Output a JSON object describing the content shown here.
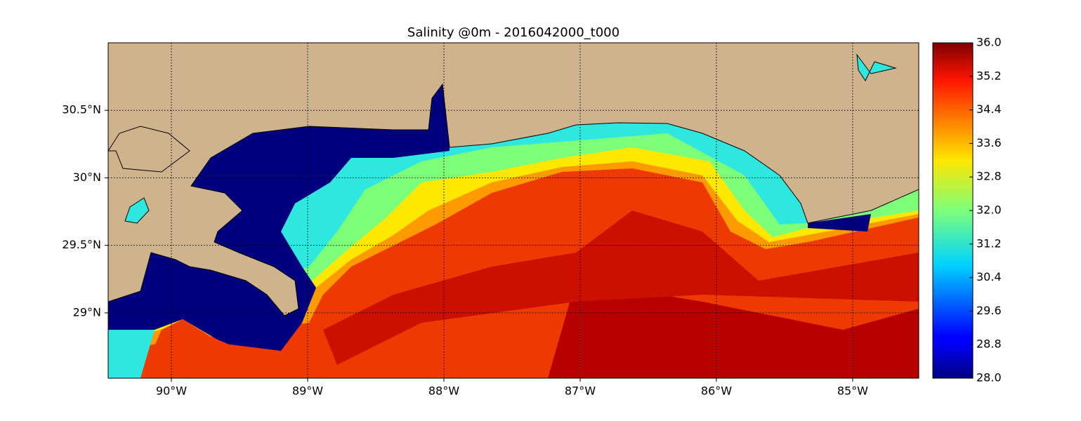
{
  "map": {
    "title": "Salinity @0m - 2016042000_t000",
    "xlim": [
      -90.464,
      -84.515
    ],
    "xticks": [
      {
        "value": -90,
        "label": "90°W"
      },
      {
        "value": -89,
        "label": "89°W"
      },
      {
        "value": -88,
        "label": "88°W"
      },
      {
        "value": -87,
        "label": "87°W"
      },
      {
        "value": -86,
        "label": "86°W"
      },
      {
        "value": -85,
        "label": "85°W"
      }
    ],
    "ylim": [
      28.516,
      31.0
    ],
    "yticks": [
      {
        "value": 29,
        "label": "29°N"
      },
      {
        "value": 29.5,
        "label": "29.5°N"
      },
      {
        "value": 30,
        "label": "30°N"
      },
      {
        "value": 30.5,
        "label": "30.5°N"
      }
    ],
    "grid": true,
    "colorbar": {
      "lim": [
        28.0,
        36.0
      ],
      "ticks": [
        {
          "value": 28,
          "label": "28.0"
        },
        {
          "value": 28.8,
          "label": "28.8"
        },
        {
          "value": 29.6,
          "label": "29.6"
        },
        {
          "value": 30.4,
          "label": "30.4"
        },
        {
          "value": 31.2,
          "label": "31.2"
        },
        {
          "value": 32,
          "label": "32.0"
        },
        {
          "value": 32.8,
          "label": "32.8"
        },
        {
          "value": 33.6,
          "label": "33.6"
        },
        {
          "value": 34.4,
          "label": "34.4"
        },
        {
          "value": 35.2,
          "label": "35.2"
        },
        {
          "value": 36,
          "label": "36.0"
        }
      ]
    }
  }
}
